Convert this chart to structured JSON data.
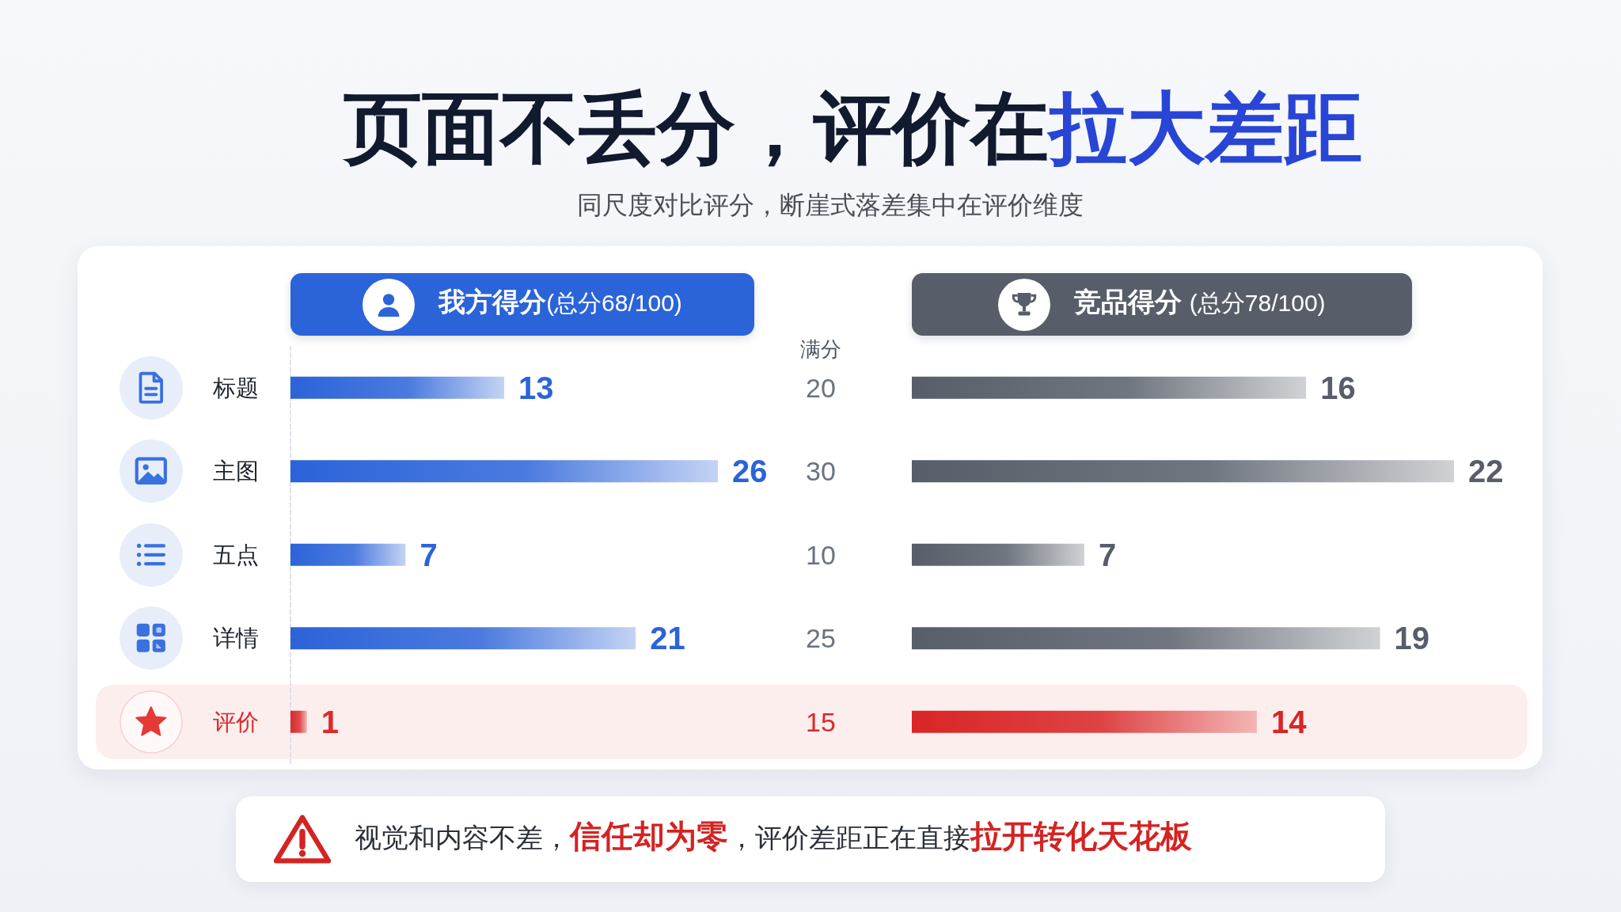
{
  "chart_data": [
    {
      "type": "other",
      "title": "页面不丢分，评价在拉大差距",
      "subtitle": "同尺度对比评分，断崖式落差集中在评价维度"
    },
    {
      "type": "bar",
      "orientation": "horizontal",
      "title": "我方得分(总分68/100)",
      "categories": [
        "标题",
        "主图",
        "五点",
        "详情",
        "评价"
      ],
      "values": [
        13,
        26,
        7,
        21,
        1
      ],
      "colors": [
        "#2b63d9",
        "#2b63d9",
        "#2b63d9",
        "#2b63d9",
        "#d92b2b"
      ],
      "data_labels": true,
      "tick_labels": "y",
      "bands": [
        {
          "axis": "y",
          "from": "评价",
          "to": "评价",
          "color": "#fdeeee"
        }
      ]
    },
    {
      "type": "other",
      "title": "满分",
      "values": [
        20,
        30,
        10,
        25,
        15
      ],
      "colors": [
        "#6b7280",
        "#6b7280",
        "#6b7280",
        "#6b7280",
        "#d92b2b"
      ],
      "data_labels": true
    },
    {
      "type": "bar",
      "orientation": "horizontal",
      "title": "竞品得分 (总分78/100)",
      "categories": [
        "标题",
        "主图",
        "五点",
        "详情",
        "评价"
      ],
      "values": [
        16,
        22,
        7,
        19,
        14
      ],
      "colors": [
        "#575e69",
        "#575e69",
        "#575e69",
        "#575e69",
        "#d92525"
      ],
      "data_labels": true,
      "tick_labels": false,
      "bands": [
        {
          "axis": "y",
          "from": "评价",
          "to": "评价",
          "color": "#fdeeee"
        }
      ]
    },
    {
      "type": "other",
      "annotations": [
        "视觉和内容不差，信任却为零，评价差距正在直接拉开转化天花板"
      ]
    }
  ]
}
